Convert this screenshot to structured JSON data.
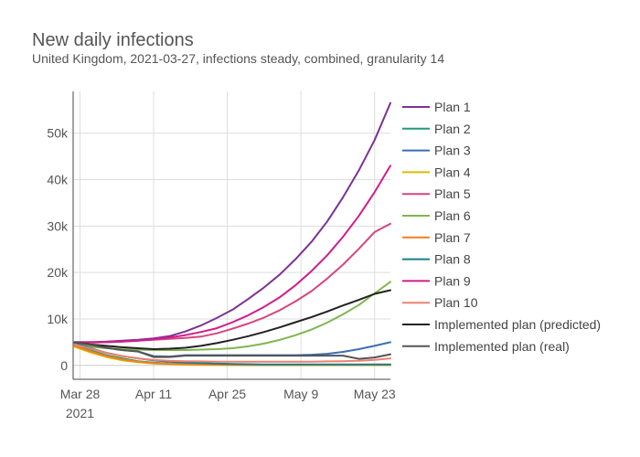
{
  "chart_data": {
    "type": "line",
    "title": "New daily infections",
    "subtitle": "United Kingdom, 2021-03-27, infections steady, combined, granularity 14",
    "xlabel": "",
    "ylabel": "",
    "x_range": [
      -0.3,
      60
    ],
    "ylim": [
      -3000,
      59000
    ],
    "x_ticks": [
      {
        "x": 1,
        "label": "Mar 28"
      },
      {
        "x": 15,
        "label": "Apr 11"
      },
      {
        "x": 29,
        "label": "Apr 25"
      },
      {
        "x": 43,
        "label": "May 9"
      },
      {
        "x": 57,
        "label": "May 23"
      }
    ],
    "x_tick_sublabel": {
      "x": 1,
      "label": "2021"
    },
    "y_ticks": [
      {
        "y": 0,
        "label": "0"
      },
      {
        "y": 10000,
        "label": "10k"
      },
      {
        "y": 20000,
        "label": "20k"
      },
      {
        "y": 30000,
        "label": "30k"
      },
      {
        "y": 40000,
        "label": "40k"
      },
      {
        "y": 50000,
        "label": "50k"
      }
    ],
    "x": [
      0,
      3,
      6,
      9,
      12,
      15,
      18,
      21,
      24,
      27,
      30,
      33,
      36,
      39,
      42,
      45,
      48,
      51,
      54,
      57,
      60
    ],
    "series": [
      {
        "name": "Plan 1",
        "color": "#7b3294",
        "values": [
          5000,
          5000,
          5100,
          5300,
          5500,
          5800,
          6300,
          7300,
          8600,
          10200,
          12000,
          14300,
          16800,
          19600,
          22900,
          26600,
          31000,
          36200,
          42000,
          48500,
          56500
        ]
      },
      {
        "name": "Plan 2",
        "color": "#1b9e77",
        "values": [
          4500,
          3200,
          2200,
          1500,
          900,
          600,
          400,
          300,
          200,
          150,
          100,
          100,
          100,
          100,
          100,
          100,
          100,
          100,
          100,
          100,
          100
        ]
      },
      {
        "name": "Plan 3",
        "color": "#3a6fb3",
        "values": [
          5000,
          4400,
          3800,
          3300,
          3000,
          2000,
          1900,
          2200,
          2200,
          2200,
          2200,
          2200,
          2200,
          2200,
          2200,
          2300,
          2500,
          2900,
          3500,
          4200,
          5000
        ]
      },
      {
        "name": "Plan 4",
        "color": "#d9bf00",
        "values": [
          4000,
          2800,
          1800,
          1100,
          700,
          400,
          250,
          150,
          100,
          80,
          60,
          50,
          50,
          50,
          50,
          50,
          50,
          50,
          50,
          50,
          50
        ]
      },
      {
        "name": "Plan 5",
        "color": "#d6457e",
        "values": [
          5000,
          4900,
          5000,
          5100,
          5300,
          5500,
          5700,
          5900,
          6200,
          6900,
          7900,
          9000,
          10300,
          11900,
          13800,
          16000,
          18700,
          21700,
          25100,
          28700,
          30500
        ]
      },
      {
        "name": "Plan 6",
        "color": "#7fb650",
        "values": [
          4500,
          4000,
          3700,
          3500,
          3400,
          3300,
          3300,
          3300,
          3400,
          3500,
          3700,
          4100,
          4700,
          5500,
          6500,
          7700,
          9200,
          11000,
          13000,
          15500,
          18000
        ]
      },
      {
        "name": "Plan 7",
        "color": "#f57e21",
        "values": [
          4200,
          3000,
          2000,
          1300,
          800,
          500,
          350,
          250,
          200,
          150,
          120,
          100,
          100,
          100,
          100,
          100,
          100,
          100,
          100,
          100,
          100
        ]
      },
      {
        "name": "Plan 8",
        "color": "#17808e",
        "values": [
          4800,
          3700,
          2700,
          2000,
          1500,
          1100,
          800,
          600,
          500,
          400,
          300,
          250,
          200,
          200,
          200,
          200,
          200,
          200,
          200,
          200,
          200
        ]
      },
      {
        "name": "Plan 9",
        "color": "#d01c8b",
        "values": [
          5000,
          5000,
          5000,
          5100,
          5300,
          5600,
          6000,
          6500,
          7200,
          8000,
          9300,
          10800,
          12600,
          14700,
          17300,
          20300,
          23700,
          27700,
          32200,
          37300,
          43000
        ]
      },
      {
        "name": "Plan 10",
        "color": "#f08070",
        "values": [
          4500,
          3600,
          2700,
          2000,
          1500,
          1200,
          1000,
          900,
          850,
          800,
          800,
          800,
          800,
          800,
          800,
          800,
          850,
          900,
          1000,
          1200,
          1500
        ]
      },
      {
        "name": "Implemented plan (predicted)",
        "color": "#222222",
        "values": [
          5000,
          4500,
          4200,
          3900,
          3700,
          3500,
          3600,
          3800,
          4200,
          4800,
          5500,
          6300,
          7200,
          8200,
          9300,
          10400,
          11600,
          12900,
          14100,
          15400,
          16200
        ]
      },
      {
        "name": "Implemented plan (real)",
        "color": "#555555",
        "values": [
          5000,
          4400,
          3800,
          3300,
          3000,
          1800,
          1800,
          2100,
          2100,
          2100,
          2100,
          2100,
          2100,
          2100,
          2100,
          2100,
          2100,
          2100,
          1400,
          1700,
          2400
        ]
      }
    ]
  }
}
